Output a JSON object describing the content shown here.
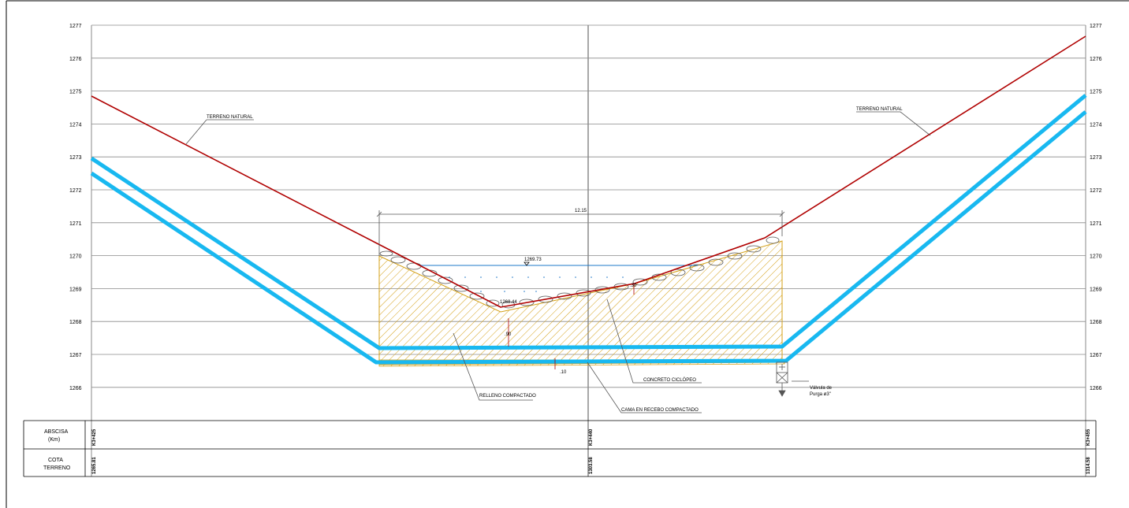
{
  "elevation_ticks": [
    "1277",
    "1276",
    "1275",
    "1274",
    "1273",
    "1272",
    "1271",
    "1270",
    "1269",
    "1268",
    "1267",
    "1266"
  ],
  "labels": {
    "terrain_left": "TERRENO NATURAL",
    "terrain_right": "TERRENO NATURAL",
    "width": "12.15",
    "water_level": "1269.73",
    "bottom_level": "1268.44",
    "dim_30": ".30",
    "dim_90": ".90",
    "dim_10": ".10",
    "concrete": "CONCRETO CICLÓPEO",
    "fill": "RELLENO COMPACTADO",
    "bed": "CAMA EN RECEBO COMPACTADO",
    "valve_line1": "Válvula de",
    "valve_line2": "Purga ø3\""
  },
  "table": {
    "row1_title_line1": "ABSCISA",
    "row1_title_line2": "(Km)",
    "row2_title_line1": "COTA",
    "row2_title_line2": "TERRENO",
    "abscisas": [
      "K3+425",
      "K3+440",
      "K3+455"
    ],
    "cotas": [
      "1265.81",
      "1303.58",
      "1314.58"
    ]
  },
  "colors": {
    "terrain": "#b00000",
    "pipe": "#18b8f0",
    "fill": "#d4a017",
    "grid": "#8a8a8a",
    "frame": "#000000"
  }
}
